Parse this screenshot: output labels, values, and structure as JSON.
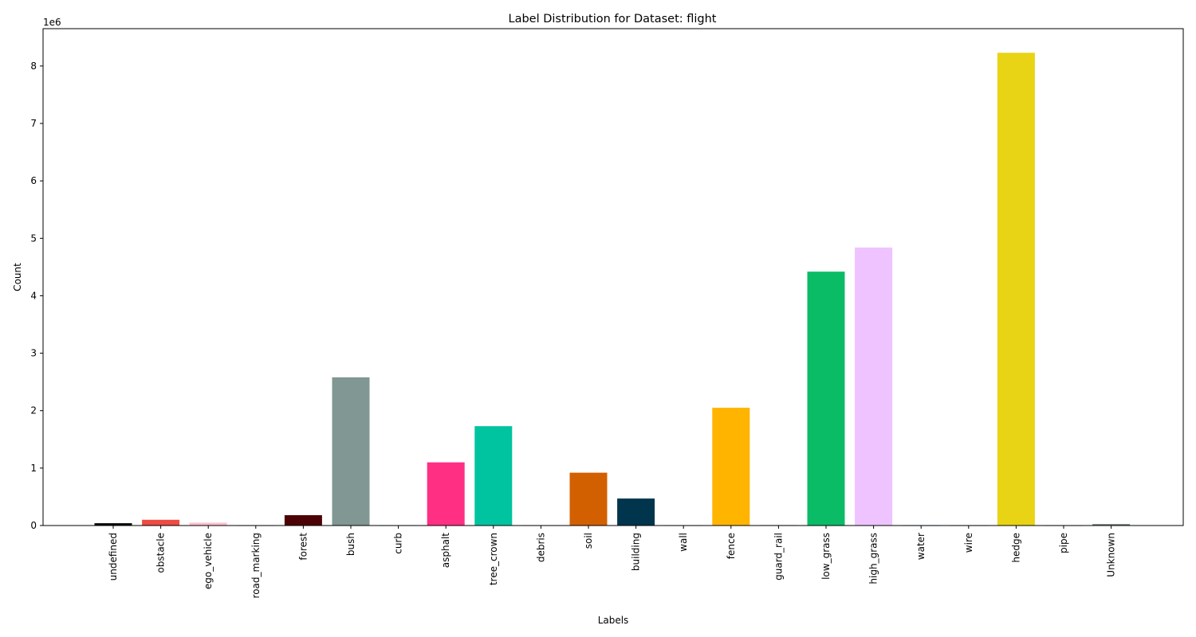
{
  "chart_data": {
    "type": "bar",
    "title": "Label Distribution for Dataset: flight",
    "xlabel": "Labels",
    "ylabel": "Count",
    "y_offset_label": "1e6",
    "ylim": [
      0,
      8.65
    ],
    "yticks": [
      0,
      1,
      2,
      3,
      4,
      5,
      6,
      7,
      8
    ],
    "y_scale_note": "values in units of 1e6",
    "grid": false,
    "categories": [
      "undefined",
      "obstacle",
      "ego_vehicle",
      "road_marking",
      "forest",
      "bush",
      "curb",
      "asphalt",
      "tree_crown",
      "debris",
      "soil",
      "building",
      "wall",
      "fence",
      "guard_rail",
      "low_grass",
      "high_grass",
      "water",
      "wire",
      "hedge",
      "pipe",
      "Unknown"
    ],
    "values": [
      0.04,
      0.1,
      0.05,
      0.003,
      0.18,
      2.58,
      0.003,
      1.1,
      1.73,
      0.003,
      0.92,
      0.47,
      0.003,
      2.05,
      0.008,
      4.42,
      4.84,
      0.003,
      0.003,
      8.23,
      0.003,
      0.025
    ],
    "colors": [
      "#000000",
      "#ee4b43",
      "#ffc0cb",
      "#a0a0a0",
      "#4d0306",
      "#809793",
      "#8ab2b0",
      "#ff2f84",
      "#00c3a0",
      "#bfbfbf",
      "#d26000",
      "#00354d",
      "#a0a0a0",
      "#ffb400",
      "#4e6e6c",
      "#0bbc66",
      "#eec3ff",
      "#1e90ff",
      "#888888",
      "#e8d315",
      "#808080",
      "#6b7b78"
    ]
  }
}
